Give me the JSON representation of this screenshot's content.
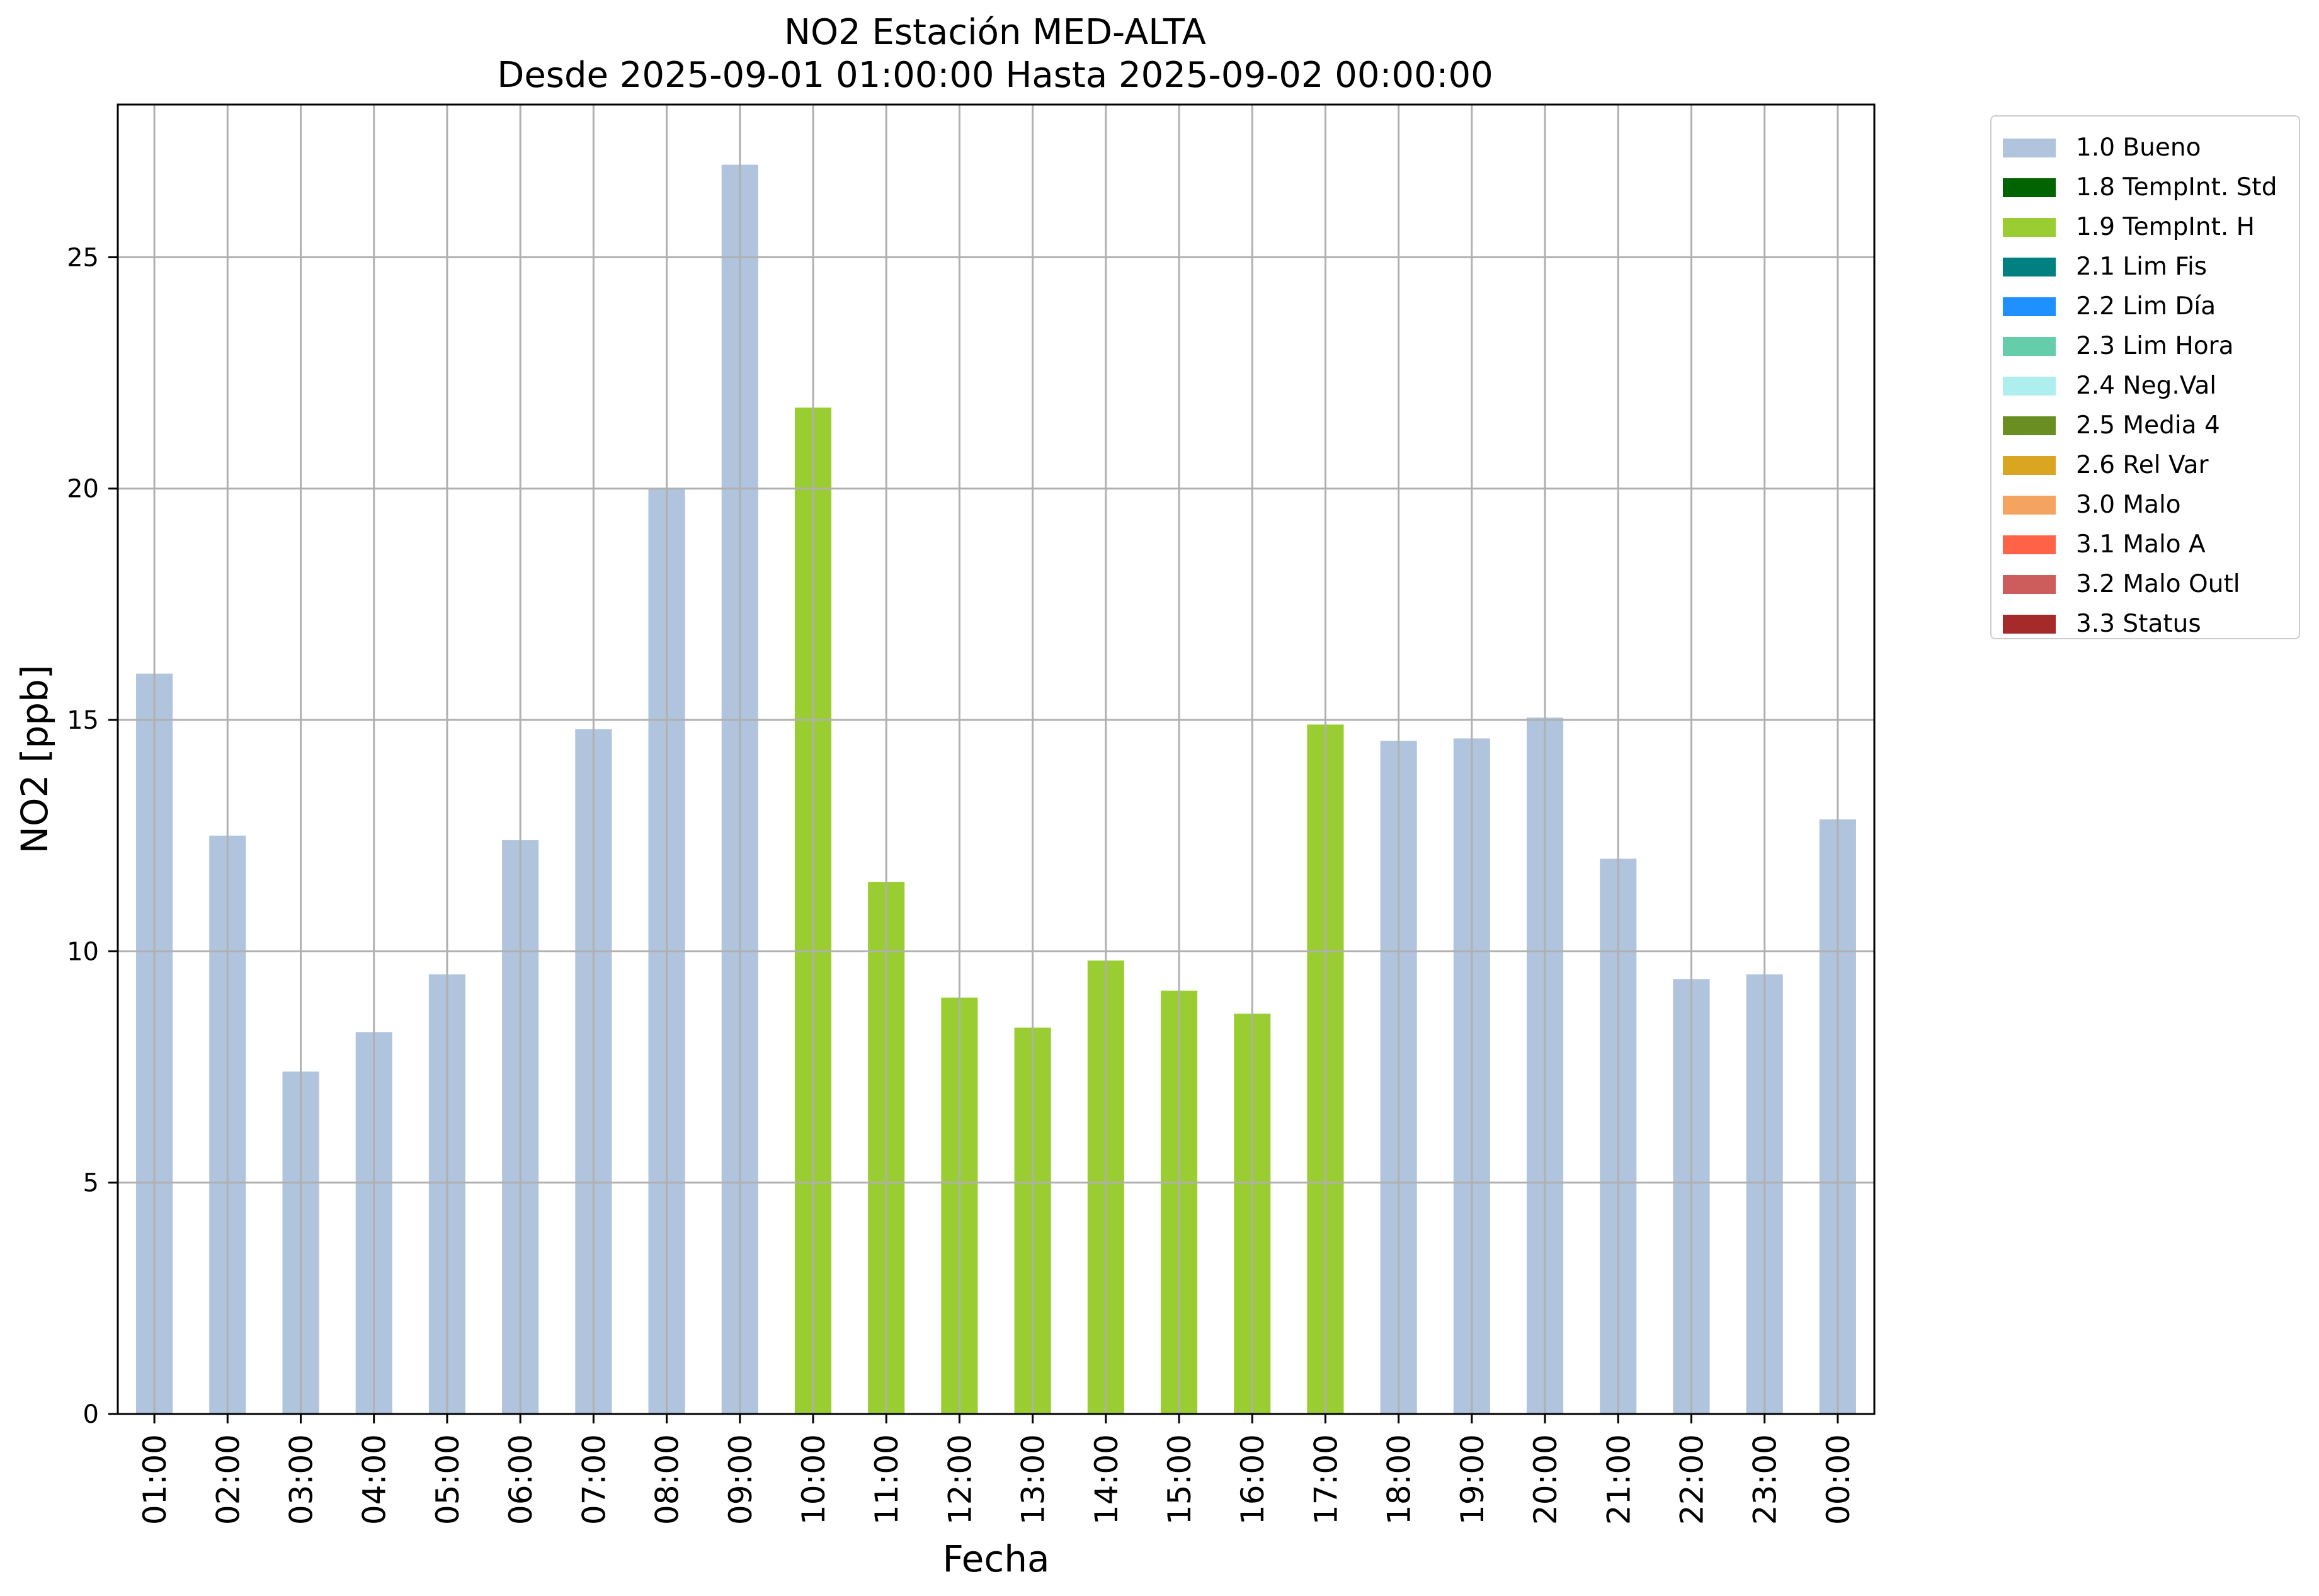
{
  "chart_data": {
    "type": "bar",
    "title": "NO2 Estación MED-ALTA",
    "subtitle": "Desde 2025-09-01 01:00:00 Hasta 2025-09-02 00:00:00",
    "xlabel": "Fecha",
    "ylabel": "NO2 [ppb]",
    "ylim": [
      0,
      28.3
    ],
    "yticks": [
      0,
      5,
      10,
      15,
      20,
      25
    ],
    "grid": true,
    "legend_placement": "outside right, top",
    "categories": [
      "01:00",
      "02:00",
      "03:00",
      "04:00",
      "05:00",
      "06:00",
      "07:00",
      "08:00",
      "09:00",
      "10:00",
      "11:00",
      "12:00",
      "13:00",
      "14:00",
      "15:00",
      "16:00",
      "17:00",
      "18:00",
      "19:00",
      "20:00",
      "21:00",
      "22:00",
      "23:00",
      "00:00"
    ],
    "values": [
      16.0,
      12.5,
      7.4,
      8.25,
      9.5,
      12.4,
      14.8,
      20.0,
      27.0,
      21.75,
      11.5,
      9.0,
      8.35,
      9.8,
      9.15,
      8.65,
      14.9,
      14.55,
      14.6,
      15.05,
      12.0,
      9.4,
      9.5,
      12.85
    ],
    "flags": [
      "1.0 Bueno",
      "1.0 Bueno",
      "1.0 Bueno",
      "1.0 Bueno",
      "1.0 Bueno",
      "1.0 Bueno",
      "1.0 Bueno",
      "1.0 Bueno",
      "1.0 Bueno",
      "1.9 TempInt. H",
      "1.9 TempInt. H",
      "1.9 TempInt. H",
      "1.9 TempInt. H",
      "1.9 TempInt. H",
      "1.9 TempInt. H",
      "1.9 TempInt. H",
      "1.9 TempInt. H",
      "1.0 Bueno",
      "1.0 Bueno",
      "1.0 Bueno",
      "1.0 Bueno",
      "1.0 Bueno",
      "1.0 Bueno",
      "1.0 Bueno"
    ],
    "legend": [
      {
        "label": "1.0 Bueno",
        "color": "#b0c4de"
      },
      {
        "label": "1.8 TempInt. Std",
        "color": "#006400"
      },
      {
        "label": "1.9 TempInt. H",
        "color": "#9acd32"
      },
      {
        "label": "2.1 Lim Fis",
        "color": "#008080"
      },
      {
        "label": "2.2 Lim Día",
        "color": "#1e90ff"
      },
      {
        "label": "2.3 Lim Hora",
        "color": "#66cdaa"
      },
      {
        "label": "2.4 Neg.Val",
        "color": "#afeeee"
      },
      {
        "label": "2.5 Media 4",
        "color": "#6b8e23"
      },
      {
        "label": "2.6 Rel Var",
        "color": "#daa520"
      },
      {
        "label": "3.0 Malo",
        "color": "#f4a460"
      },
      {
        "label": "3.1 Malo A",
        "color": "#ff6347"
      },
      {
        "label": "3.2 Malo Outl",
        "color": "#cd5c5c"
      },
      {
        "label": "3.3 Status",
        "color": "#a52a2a"
      }
    ]
  }
}
